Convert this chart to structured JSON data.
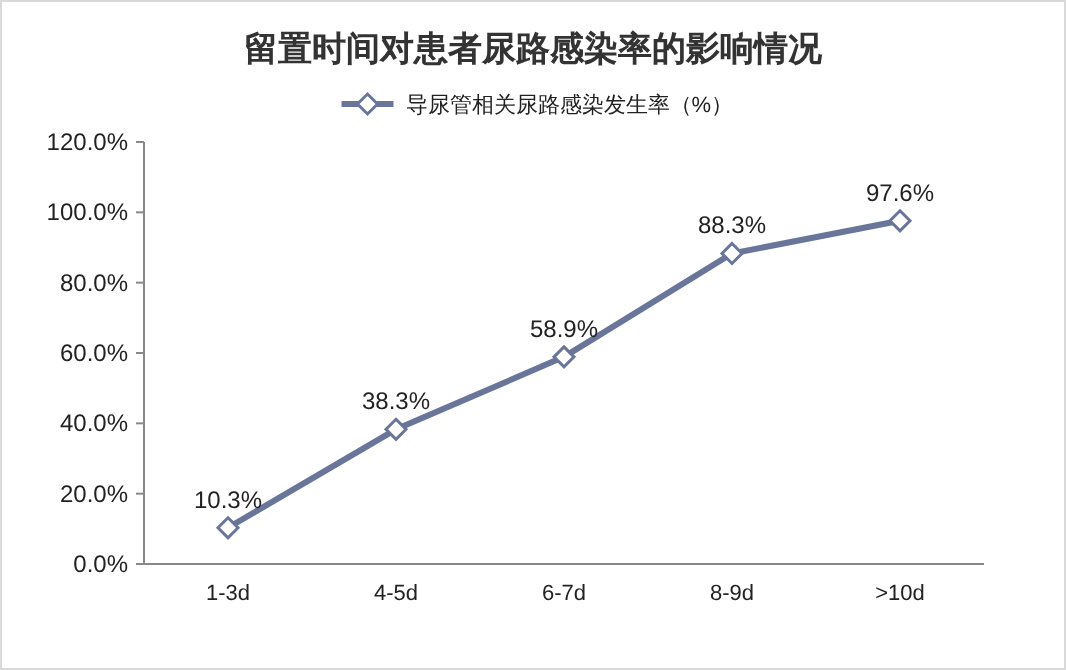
{
  "chart_data": {
    "type": "line",
    "title": "留置时间对患者尿路感染率的影响情况",
    "categories": [
      "1-3d",
      "4-5d",
      "6-7d",
      "8-9d",
      ">10d"
    ],
    "series": [
      {
        "name": "导尿管相关尿路感染发生率（%）",
        "color": "#69769a",
        "values": [
          10.3,
          38.3,
          58.9,
          88.3,
          97.6
        ],
        "value_labels": [
          "10.3%",
          "38.3%",
          "58.9%",
          "88.3%",
          "97.6%"
        ]
      }
    ],
    "ylim": [
      0,
      120
    ],
    "yticks": [
      {
        "value": 0,
        "label": "0.0%"
      },
      {
        "value": 20,
        "label": "20.0%"
      },
      {
        "value": 40,
        "label": "40.0%"
      },
      {
        "value": 60,
        "label": "60.0%"
      },
      {
        "value": 80,
        "label": "80.0%"
      },
      {
        "value": 100,
        "label": "100.0%"
      },
      {
        "value": 120,
        "label": "120.0%"
      }
    ],
    "legend": "top",
    "marker": "diamond",
    "line_style": "solid",
    "grid": false
  }
}
